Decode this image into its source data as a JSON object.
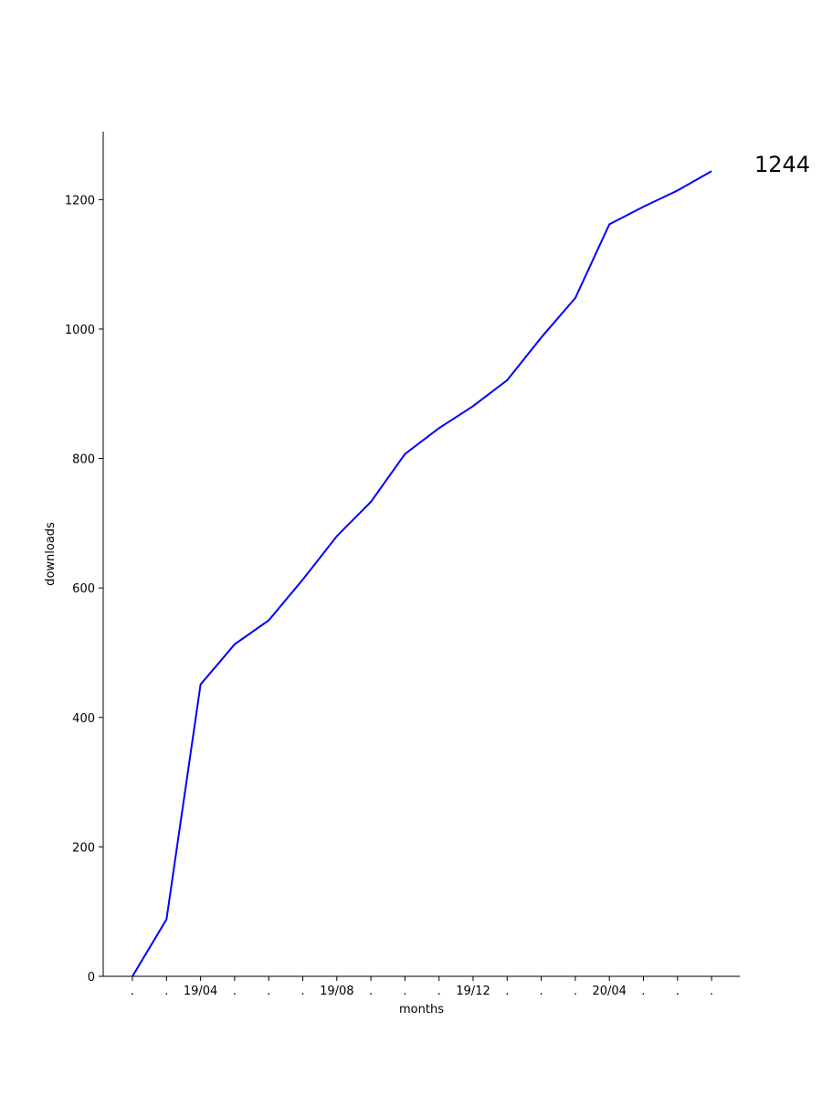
{
  "chart_data": {
    "type": "line",
    "title": "",
    "xlabel": "months",
    "ylabel": "downloads",
    "x_tick_labels": [
      ".",
      ".",
      "19/04",
      ".",
      ".",
      ".",
      "19/08",
      ".",
      ".",
      ".",
      "19/12",
      ".",
      ".",
      ".",
      "20/04",
      ".",
      ".",
      "."
    ],
    "y_ticks": [
      0,
      200,
      400,
      600,
      800,
      1000,
      1200
    ],
    "ylim": [
      0,
      1305
    ],
    "grid": false,
    "legend": "none",
    "line_color": "#0000ff",
    "series": [
      {
        "values": [
          0,
          88,
          451,
          513,
          550,
          613,
          680,
          733,
          807,
          847,
          881,
          921,
          987,
          1048,
          1162,
          1189,
          1214,
          1244
        ]
      }
    ],
    "last_value_label": "1244"
  }
}
